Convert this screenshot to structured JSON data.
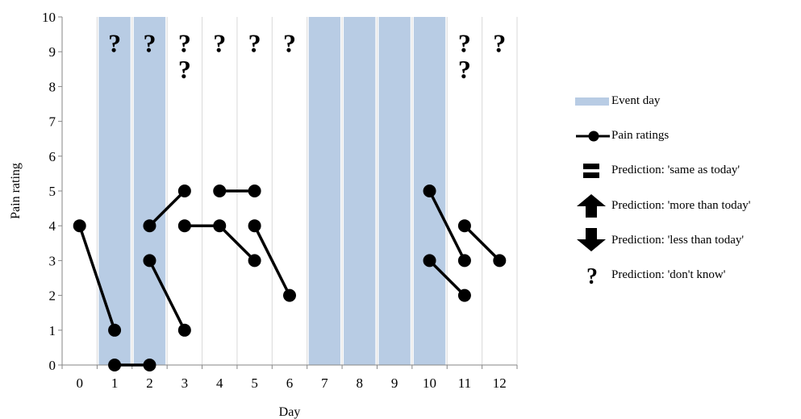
{
  "chart_data": {
    "type": "scatter",
    "title": "",
    "xlabel": "Day",
    "ylabel": "Pain rating",
    "xlim": [
      -0.5,
      12.5
    ],
    "ylim": [
      0,
      10
    ],
    "x_ticks": [
      "0",
      "1",
      "2",
      "3",
      "4",
      "5",
      "6",
      "7",
      "8",
      "9",
      "10",
      "11",
      "12"
    ],
    "y_ticks": [
      "0",
      "1",
      "2",
      "3",
      "4",
      "5",
      "6",
      "7",
      "8",
      "9",
      "10"
    ],
    "grid": "vertical gridlines at day boundaries",
    "event_days": [
      1,
      2,
      7,
      8,
      9,
      10
    ],
    "series": [
      {
        "name": "Pain ratings",
        "segments": [
          [
            [
              0,
              4
            ],
            [
              1,
              1
            ]
          ],
          [
            [
              1,
              0
            ],
            [
              2,
              0
            ]
          ],
          [
            [
              2,
              4
            ],
            [
              3,
              5
            ]
          ],
          [
            [
              2,
              3
            ],
            [
              3,
              1
            ]
          ],
          [
            [
              3,
              4
            ],
            [
              4,
              4
            ],
            [
              5,
              3
            ]
          ],
          [
            [
              4,
              5
            ],
            [
              5,
              5
            ]
          ],
          [
            [
              5,
              4
            ],
            [
              6,
              2
            ]
          ],
          [
            [
              10,
              5
            ],
            [
              11,
              3
            ]
          ],
          [
            [
              10,
              3
            ],
            [
              11,
              2
            ]
          ],
          [
            [
              11,
              4
            ],
            [
              12,
              3
            ]
          ]
        ]
      }
    ],
    "predictions": [
      {
        "day": 1,
        "type": "don't know",
        "level": 9.25
      },
      {
        "day": 2,
        "type": "don't know",
        "level": 9.25
      },
      {
        "day": 3,
        "type": "don't know",
        "level": 9.25
      },
      {
        "day": 3,
        "type": "don't know",
        "level": 8.5
      },
      {
        "day": 4,
        "type": "don't know",
        "level": 9.25
      },
      {
        "day": 5,
        "type": "don't know",
        "level": 9.25
      },
      {
        "day": 6,
        "type": "don't know",
        "level": 9.25
      },
      {
        "day": 11,
        "type": "don't know",
        "level": 9.25
      },
      {
        "day": 11,
        "type": "don't know",
        "level": 8.5
      },
      {
        "day": 12,
        "type": "don't know",
        "level": 9.25
      }
    ],
    "prediction_glyph": "?",
    "legend_position": "right"
  },
  "legend": {
    "items": [
      {
        "label": "Event day",
        "icon": "event-day-swatch",
        "color": "#b8cce4"
      },
      {
        "label": "Pain ratings",
        "icon": "line-with-dot-marker",
        "color": "#000000"
      },
      {
        "label": "Prediction: 'same as today'",
        "icon": "equals-icon",
        "color": "#000000"
      },
      {
        "label": "Prediction: 'more than today'",
        "icon": "arrow-up-icon",
        "color": "#000000"
      },
      {
        "label": "Prediction: 'less than today'",
        "icon": "arrow-down-icon",
        "color": "#000000"
      },
      {
        "label": "Prediction: 'don't know'",
        "icon": "question-mark-icon",
        "color": "#000000"
      }
    ]
  },
  "colors": {
    "event_day": "#b8cce4",
    "gridline": "#d9d9d9",
    "axis": "#868686",
    "marker": "#000000"
  }
}
